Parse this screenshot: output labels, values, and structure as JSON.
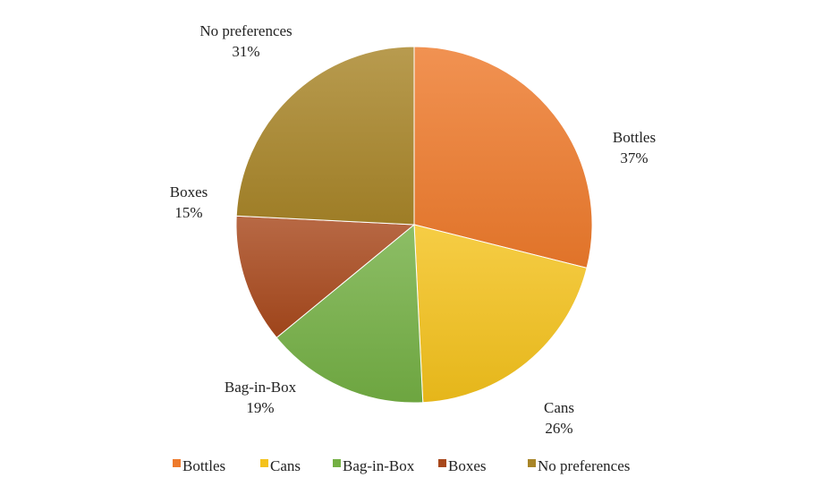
{
  "chart_data": {
    "type": "pie",
    "title": "",
    "categories": [
      "Bottles",
      "Cans",
      "Bag-in-Box",
      "Boxes",
      "No preferences"
    ],
    "values": [
      37,
      26,
      19,
      15,
      31
    ],
    "labels": [
      "37%",
      "26%",
      "19%",
      "15%",
      "31%"
    ],
    "colors": [
      "#ee7a2c",
      "#f4c21c",
      "#74b044",
      "#a8481c",
      "#a88528"
    ],
    "legend_position": "bottom"
  }
}
